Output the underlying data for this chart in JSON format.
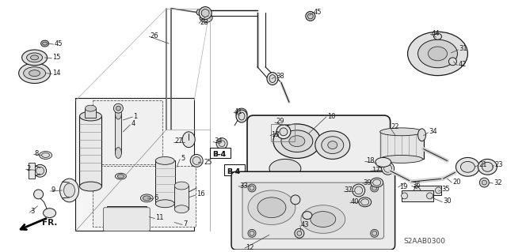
{
  "bg": "#ffffff",
  "fg": "#1a1a1a",
  "fig_w": 6.4,
  "fig_h": 3.19,
  "dpi": 100,
  "diagram_id": "S2AAB0300"
}
